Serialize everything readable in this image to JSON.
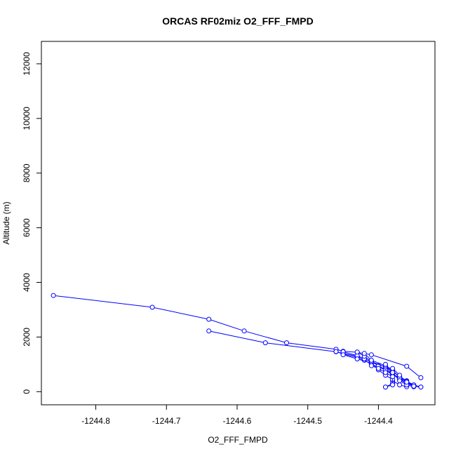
{
  "chart_data": {
    "type": "line",
    "title": "ORCAS RF02miz O2_FFF_FMPD",
    "xlabel": "O2_FFF_FMPD",
    "ylabel": "Altitude (m)",
    "xlim": [
      -1244.877,
      -1244.32
    ],
    "ylim": [
      -480,
      12820
    ],
    "xticks": [
      -1244.8,
      -1244.7,
      -1244.6,
      -1244.5,
      -1244.4
    ],
    "xtick_labels": [
      "-1244.8",
      "-1244.7",
      "-1244.6",
      "-1244.5",
      "-1244.4"
    ],
    "yticks": [
      0,
      2000,
      4000,
      6000,
      8000,
      10000,
      12000
    ],
    "ytick_labels": [
      "0",
      "2000",
      "4000",
      "6000",
      "8000",
      "10000",
      "12000"
    ],
    "grid": false,
    "series_color": "#0000ff",
    "series": [
      {
        "x": [
          -1244.86,
          -1244.72,
          -1244.64,
          -1244.59,
          -1244.53,
          -1244.46,
          -1244.45,
          -1244.43,
          -1244.41,
          -1244.36,
          -1244.34
        ],
        "y": [
          3520,
          3090,
          2650,
          2220,
          1790,
          1550,
          1480,
          1440,
          1350,
          930,
          510
        ]
      },
      {
        "x": [
          -1244.64,
          -1244.56,
          -1244.46,
          -1244.45,
          -1244.43,
          -1244.42,
          -1244.41,
          -1244.39,
          -1244.38,
          -1244.37,
          -1244.36,
          -1244.35
        ],
        "y": [
          2220,
          1790,
          1460,
          1400,
          1300,
          1200,
          1100,
          900,
          750,
          550,
          400,
          200
        ]
      },
      {
        "x": [
          -1244.46,
          -1244.45,
          -1244.43,
          -1244.42,
          -1244.41,
          -1244.39,
          -1244.38,
          -1244.38,
          -1244.37,
          -1244.36
        ],
        "y": [
          1470,
          1380,
          1250,
          1150,
          1000,
          800,
          600,
          400,
          250,
          180
        ]
      },
      {
        "x": [
          -1244.45,
          -1244.43,
          -1244.42,
          -1244.41,
          -1244.4,
          -1244.39,
          -1244.38,
          -1244.37,
          -1244.36
        ],
        "y": [
          1460,
          1320,
          1200,
          1100,
          950,
          800,
          650,
          500,
          300
        ]
      },
      {
        "x": [
          -1244.45,
          -1244.43,
          -1244.41,
          -1244.4,
          -1244.39,
          -1244.38,
          -1244.38,
          -1244.39
        ],
        "y": [
          1350,
          1200,
          1050,
          800,
          600,
          450,
          300,
          170
        ]
      },
      {
        "x": [
          -1244.43,
          -1244.42,
          -1244.41,
          -1244.39,
          -1244.38,
          -1244.37,
          -1244.36,
          -1244.35,
          -1244.34
        ],
        "y": [
          1450,
          1300,
          1100,
          900,
          650,
          450,
          300,
          200,
          170
        ]
      },
      {
        "x": [
          -1244.42,
          -1244.41,
          -1244.39,
          -1244.38,
          -1244.37,
          -1244.36,
          -1244.35,
          -1244.34
        ],
        "y": [
          1400,
          1150,
          950,
          800,
          500,
          380,
          250,
          170
        ]
      },
      {
        "x": [
          -1244.41,
          -1244.4,
          -1244.39,
          -1244.38,
          -1244.38,
          -1244.39
        ],
        "y": [
          950,
          850,
          700,
          550,
          250,
          170
        ]
      },
      {
        "x": [
          -1244.39,
          -1244.38,
          -1244.37,
          -1244.36,
          -1244.35
        ],
        "y": [
          1000,
          700,
          400,
          250,
          180
        ]
      },
      {
        "x": [
          -1244.38,
          -1244.37,
          -1244.36,
          -1244.35
        ],
        "y": [
          850,
          600,
          350,
          200
        ]
      }
    ]
  }
}
